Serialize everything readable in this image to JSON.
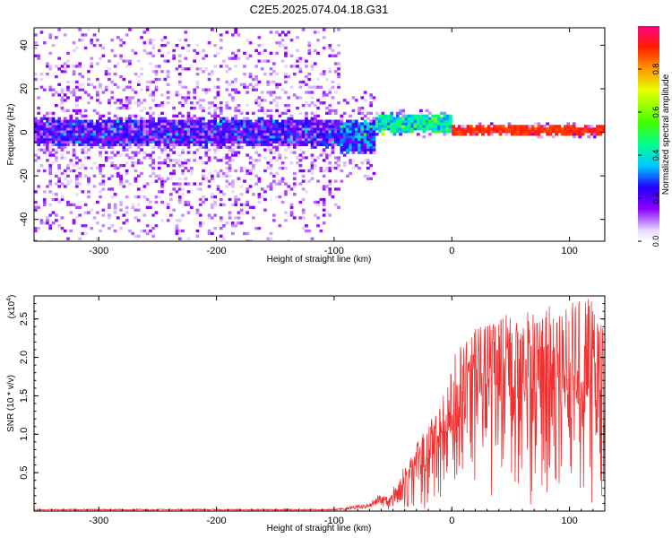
{
  "title": "C2E5.2025.074.04.18.G31",
  "chart_data": [
    {
      "type": "heatmap",
      "xlabel": "Height of straight line (km)",
      "ylabel": "Frequency (Hz)",
      "xlim": [
        -355,
        130
      ],
      "ylim": [
        -50,
        48
      ],
      "xticks": [
        -300,
        -200,
        -100,
        0,
        100
      ],
      "yticks": [
        -40,
        -20,
        0,
        20,
        40
      ],
      "colorbar": {
        "label": "Normalized spectral amplitude",
        "range": [
          0.0,
          1.0
        ],
        "ticks": [
          0.0,
          0.2,
          0.4,
          0.6,
          0.8
        ]
      },
      "bands": [
        {
          "x": [
            -355,
            -95
          ],
          "center": 0,
          "core_halfwidth": 6,
          "halo_halfwidth": 50,
          "amplitude": [
            0.08,
            0.3
          ]
        },
        {
          "x": [
            -95,
            -65
          ],
          "center": -2,
          "core_halfwidth": 7,
          "halo_halfwidth": 20,
          "amplitude": [
            0.15,
            0.4
          ]
        },
        {
          "x": [
            -65,
            0
          ],
          "center": 4,
          "core_halfwidth": 4,
          "halo_halfwidth": 6,
          "amplitude": [
            0.3,
            0.5
          ]
        },
        {
          "x": [
            0,
            130
          ],
          "center": 1,
          "core_halfwidth": 2,
          "halo_halfwidth": 3,
          "amplitude": [
            0.85,
            0.95
          ]
        }
      ],
      "grid": false
    },
    {
      "type": "line",
      "xlabel": "Height of straight line (km)",
      "ylabel": "SNR (10 * v/v)",
      "yexponent": "(x10",
      "yexponent_power": "4",
      "yexponent_close": ")",
      "xlim": [
        -355,
        130
      ],
      "ylim": [
        0,
        2.8
      ],
      "xticks": [
        -300,
        -200,
        -100,
        0,
        100
      ],
      "yticks": [
        0.5,
        1.0,
        1.5,
        2.0,
        2.5
      ],
      "series": [
        {
          "color": "#f03030",
          "envelope": [
            {
              "x": -355,
              "y": 0.02
            },
            {
              "x": -100,
              "y": 0.02
            },
            {
              "x": -70,
              "y": 0.08
            },
            {
              "x": -50,
              "y": 0.3
            },
            {
              "x": -30,
              "y": 0.9
            },
            {
              "x": -10,
              "y": 1.4
            },
            {
              "x": 0,
              "y": 2.0
            },
            {
              "x": 20,
              "y": 2.4
            },
            {
              "x": 50,
              "y": 2.6
            },
            {
              "x": 100,
              "y": 2.7
            },
            {
              "x": 120,
              "y": 2.8
            },
            {
              "x": 130,
              "y": 2.3
            }
          ]
        }
      ],
      "grid": false
    }
  ]
}
